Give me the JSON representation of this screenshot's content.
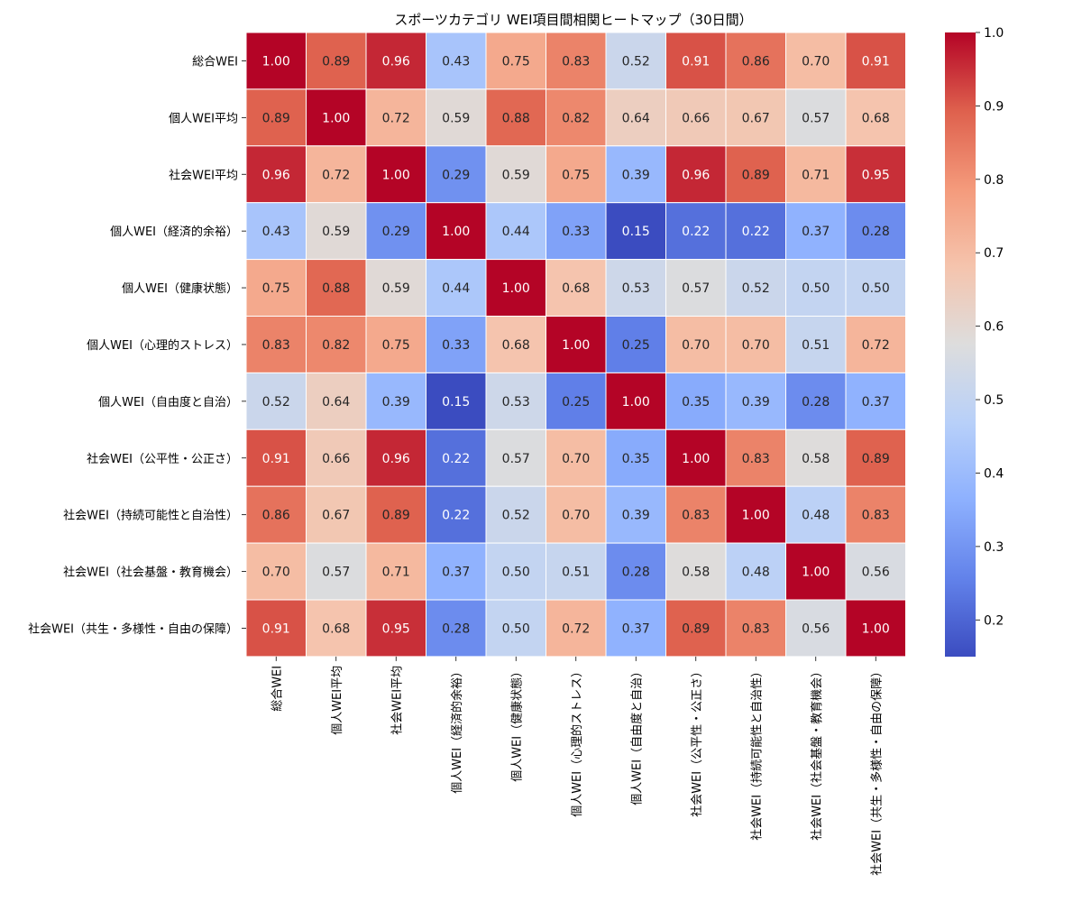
{
  "chart_data": {
    "type": "heatmap",
    "title": "スポーツカテゴリ WEI項目間相関ヒートマップ（30日間）",
    "labels": [
      "総合WEI",
      "個人WEI平均",
      "社会WEI平均",
      "個人WEI（経済的余裕）",
      "個人WEI（健康状態）",
      "個人WEI（心理的ストレス）",
      "個人WEI（自由度と自治）",
      "社会WEI（公平性・公正さ）",
      "社会WEI（持続可能性と自治性）",
      "社会WEI（社会基盤・教育機会）",
      "社会WEI（共生・多様性・自由の保障）"
    ],
    "matrix": [
      [
        1.0,
        0.89,
        0.96,
        0.43,
        0.75,
        0.83,
        0.52,
        0.91,
        0.86,
        0.7,
        0.91
      ],
      [
        0.89,
        1.0,
        0.72,
        0.59,
        0.88,
        0.82,
        0.64,
        0.66,
        0.67,
        0.57,
        0.68
      ],
      [
        0.96,
        0.72,
        1.0,
        0.29,
        0.59,
        0.75,
        0.39,
        0.96,
        0.89,
        0.71,
        0.95
      ],
      [
        0.43,
        0.59,
        0.29,
        1.0,
        0.44,
        0.33,
        0.15,
        0.22,
        0.22,
        0.37,
        0.28
      ],
      [
        0.75,
        0.88,
        0.59,
        0.44,
        1.0,
        0.68,
        0.53,
        0.57,
        0.52,
        0.5,
        0.5
      ],
      [
        0.83,
        0.82,
        0.75,
        0.33,
        0.68,
        1.0,
        0.25,
        0.7,
        0.7,
        0.51,
        0.72
      ],
      [
        0.52,
        0.64,
        0.39,
        0.15,
        0.53,
        0.25,
        1.0,
        0.35,
        0.39,
        0.28,
        0.37
      ],
      [
        0.91,
        0.66,
        0.96,
        0.22,
        0.57,
        0.7,
        0.35,
        1.0,
        0.83,
        0.58,
        0.89
      ],
      [
        0.86,
        0.67,
        0.89,
        0.22,
        0.52,
        0.7,
        0.39,
        0.83,
        1.0,
        0.48,
        0.83
      ],
      [
        0.7,
        0.57,
        0.71,
        0.37,
        0.5,
        0.51,
        0.28,
        0.58,
        0.48,
        1.0,
        0.56
      ],
      [
        0.91,
        0.68,
        0.95,
        0.28,
        0.5,
        0.72,
        0.37,
        0.89,
        0.83,
        0.56,
        1.0
      ]
    ],
    "colormap": "coolwarm",
    "vmin": 0.15,
    "vmax": 1.0,
    "colorbar_ticks": [
      "0.2",
      "0.3",
      "0.4",
      "0.5",
      "0.6",
      "0.7",
      "0.8",
      "0.9",
      "1.0"
    ],
    "value_format": "2 decimals",
    "legend": "colorbar-right"
  }
}
